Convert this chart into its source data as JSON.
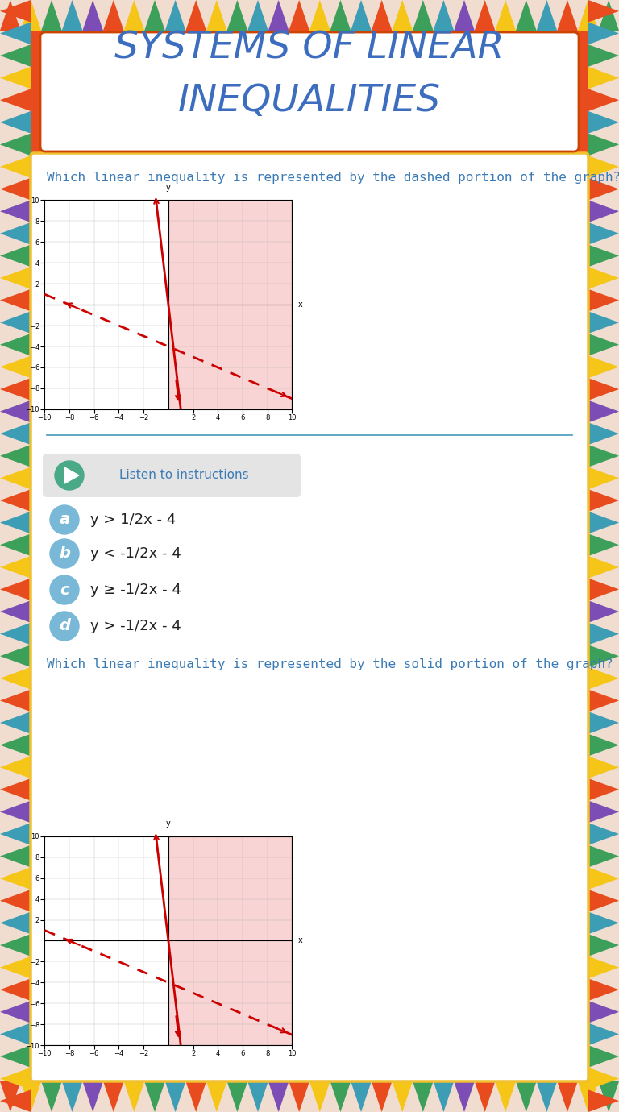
{
  "title_line1": "SYSTEMS OF LINEAR",
  "title_line2": "INEQUALITIES",
  "title_color": "#3d6dbf",
  "title_fontsize": 34,
  "bg_color": "#f0ddd0",
  "header_bg": "#e84c1e",
  "white_box_bg": "#ffffff",
  "yellow_border": "#f0c030",
  "question1_text": "Which linear inequality is represented by the dashed portion of the graph?",
  "question2_text": "Which linear inequality is represented by the solid portion of the graph?",
  "question_color": "#3a7ab5",
  "question_fontsize": 11.5,
  "graph_shading_color": "#f5b8b8",
  "graph_line_color": "#cc0000",
  "listen_button_bg": "#e0e0e0",
  "listen_button_color": "#3a7ab5",
  "listen_button_text": "Listen to instructions",
  "play_button_color": "#4aaa88",
  "choice_bg": "#7ab8d8",
  "choices": [
    "a",
    "b",
    "c",
    "d"
  ],
  "choice_texts": [
    "y > 1/2x - 4",
    "y < -1/2x - 4",
    "y ≥ -1/2x - 4",
    "y > -1/2x - 4"
  ],
  "choice_fontsize": 13,
  "border_colors_top": [
    "#e84c1e",
    "#f5c518",
    "#3da05a",
    "#3d9db5",
    "#7b4db5",
    "#e84c1e",
    "#f5c518",
    "#3da05a",
    "#3d9db5",
    "#e84c1e",
    "#f5c518",
    "#3da05a",
    "#3d9db5",
    "#7b4db5",
    "#e84c1e",
    "#f5c518",
    "#3da05a",
    "#3d9db5",
    "#e84c1e",
    "#f5c518",
    "#3da05a",
    "#3d9db5",
    "#7b4db5",
    "#e84c1e",
    "#f5c518",
    "#3da05a",
    "#3d9db5",
    "#e84c1e",
    "#f5c518",
    "#3da05a"
  ],
  "border_colors_left": [
    "#e84c1e",
    "#f5c518",
    "#3da05a",
    "#3d9db5",
    "#7b4db5",
    "#e84c1e",
    "#f5c518",
    "#3da05a",
    "#3d9db5",
    "#e84c1e",
    "#f5c518",
    "#3da05a",
    "#3d9db5",
    "#7b4db5",
    "#e84c1e",
    "#f5c518",
    "#3da05a",
    "#3d9db5",
    "#e84c1e",
    "#f5c518",
    "#3da05a",
    "#3d9db5",
    "#7b4db5",
    "#e84c1e",
    "#f5c518",
    "#3da05a",
    "#3d9db5",
    "#e84c1e",
    "#f5c518",
    "#3da05a",
    "#3d9db5",
    "#7b4db5",
    "#e84c1e",
    "#f5c518",
    "#3da05a",
    "#3d9db5",
    "#e84c1e",
    "#f5c518",
    "#3da05a",
    "#3d9db5",
    "#7b4db5",
    "#e84c1e",
    "#f5c518",
    "#3da05a",
    "#3d9db5",
    "#e84c1e",
    "#f5c518",
    "#3da05a",
    "#3d9db5",
    "#e84c1e"
  ]
}
